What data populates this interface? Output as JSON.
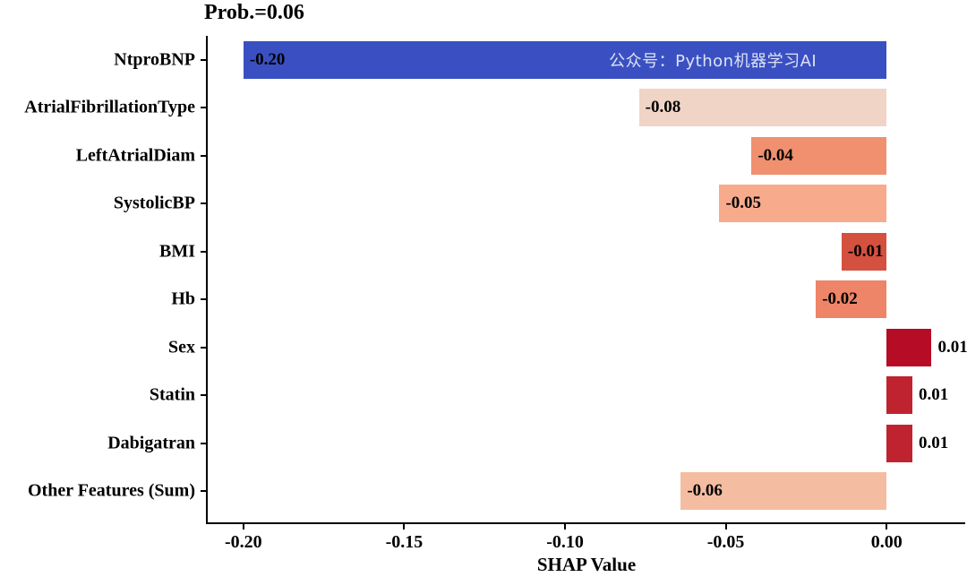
{
  "title": "Prob.=0.06",
  "watermark": "公众号：Python机器学习AI",
  "chart_data": {
    "type": "bar",
    "orientation": "horizontal",
    "title": "Prob.=0.06",
    "xlabel": "SHAP Value",
    "categories": [
      "NtproBNP",
      "AtrialFibrillationType",
      "LeftAtrialDiam",
      "SystolicBP",
      "BMI",
      "Hb",
      "Sex",
      "Statin",
      "Dabigatran",
      "Other Features (Sum)"
    ],
    "values": [
      -0.2,
      -0.08,
      -0.04,
      -0.05,
      -0.01,
      -0.02,
      0.01,
      0.01,
      0.01,
      -0.06
    ],
    "value_labels": [
      "-0.20",
      "-0.08",
      "-0.04",
      "-0.05",
      "-0.01",
      "-0.02",
      "0.01",
      "0.01",
      "0.01",
      "-0.06"
    ],
    "plot_values": [
      -0.2,
      -0.077,
      -0.042,
      -0.052,
      -0.014,
      -0.022,
      0.014,
      0.008,
      0.008,
      -0.064
    ],
    "bar_colors": [
      "#3a50c2",
      "#f0d4c6",
      "#f0906f",
      "#f7ab8c",
      "#d4503f",
      "#ee8468",
      "#b60c26",
      "#c02330",
      "#c02330",
      "#f4bda1"
    ],
    "x_ticks": [
      {
        "value": -0.2,
        "label": "-0.20"
      },
      {
        "value": -0.15,
        "label": "-0.15"
      },
      {
        "value": -0.1,
        "label": "-0.10"
      },
      {
        "value": -0.05,
        "label": "-0.05"
      },
      {
        "value": 0.0,
        "label": "0.00"
      }
    ],
    "xlim": [
      -0.2111,
      0.025
    ],
    "grid": false,
    "legend_position": "none"
  }
}
